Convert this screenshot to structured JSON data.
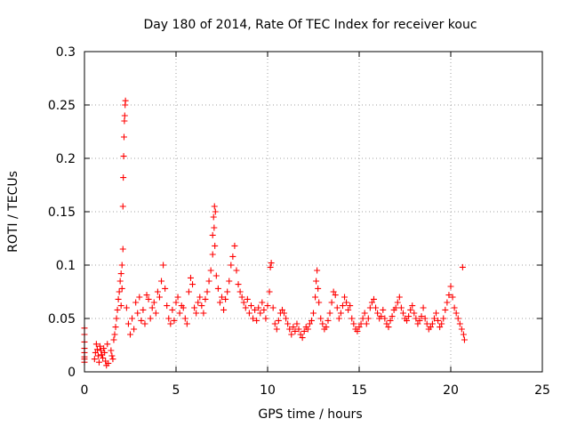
{
  "chart_data": {
    "type": "scatter",
    "title": "Day 180 of 2014, Rate Of TEC Index for receiver kouc",
    "xlabel": "GPS time / hours",
    "ylabel": "ROTI / TECUs",
    "xlim": [
      0,
      25
    ],
    "ylim": [
      0,
      0.3
    ],
    "x_ticks": [
      0,
      5,
      10,
      15,
      20,
      25
    ],
    "x_tick_labels": [
      "0",
      "5",
      "10",
      "15",
      "20",
      "25"
    ],
    "y_ticks": [
      0,
      0.05,
      0.1,
      0.15,
      0.2,
      0.25,
      0.3
    ],
    "y_tick_labels": [
      "0",
      "0.05",
      "0.1",
      "0.15",
      "0.2",
      "0.25",
      "0.3"
    ],
    "grid": true,
    "marker": "+",
    "series": [
      {
        "color": "#ff0000",
        "points": [
          [
            0.0,
            0.028
          ],
          [
            0.0,
            0.022
          ],
          [
            0.0,
            0.018
          ],
          [
            0.0,
            0.014
          ],
          [
            0.0,
            0.035
          ],
          [
            0.0,
            0.041
          ],
          [
            0.0,
            0.012
          ],
          [
            0.0,
            0.009
          ],
          [
            0.55,
            0.012
          ],
          [
            0.6,
            0.018
          ],
          [
            0.65,
            0.026
          ],
          [
            0.7,
            0.021
          ],
          [
            0.75,
            0.015
          ],
          [
            0.8,
            0.009
          ],
          [
            0.85,
            0.024
          ],
          [
            0.9,
            0.02
          ],
          [
            0.95,
            0.016
          ],
          [
            1.0,
            0.013
          ],
          [
            1.05,
            0.022
          ],
          [
            1.1,
            0.018
          ],
          [
            1.15,
            0.01
          ],
          [
            1.2,
            0.006
          ],
          [
            1.25,
            0.026
          ],
          [
            1.3,
            0.008
          ],
          [
            1.45,
            0.02
          ],
          [
            1.5,
            0.015
          ],
          [
            1.55,
            0.012
          ],
          [
            1.6,
            0.03
          ],
          [
            1.65,
            0.035
          ],
          [
            1.7,
            0.042
          ],
          [
            1.75,
            0.05
          ],
          [
            1.8,
            0.058
          ],
          [
            1.85,
            0.068
          ],
          [
            1.9,
            0.075
          ],
          [
            1.95,
            0.085
          ],
          [
            2.0,
            0.092
          ],
          [
            2.05,
            0.1
          ],
          [
            2.1,
            0.115
          ],
          [
            2.0,
            0.062
          ],
          [
            2.05,
            0.078
          ],
          [
            2.1,
            0.155
          ],
          [
            2.12,
            0.182
          ],
          [
            2.14,
            0.202
          ],
          [
            2.16,
            0.22
          ],
          [
            2.18,
            0.235
          ],
          [
            2.2,
            0.24
          ],
          [
            2.22,
            0.25
          ],
          [
            2.24,
            0.254
          ],
          [
            2.3,
            0.06
          ],
          [
            2.4,
            0.045
          ],
          [
            2.5,
            0.035
          ],
          [
            2.6,
            0.05
          ],
          [
            2.7,
            0.04
          ],
          [
            2.8,
            0.065
          ],
          [
            2.9,
            0.055
          ],
          [
            3.0,
            0.07
          ],
          [
            3.1,
            0.048
          ],
          [
            3.2,
            0.058
          ],
          [
            3.3,
            0.045
          ],
          [
            3.4,
            0.072
          ],
          [
            3.5,
            0.068
          ],
          [
            3.6,
            0.05
          ],
          [
            3.7,
            0.06
          ],
          [
            3.8,
            0.065
          ],
          [
            3.9,
            0.055
          ],
          [
            4.0,
            0.075
          ],
          [
            4.1,
            0.07
          ],
          [
            4.2,
            0.085
          ],
          [
            4.3,
            0.1
          ],
          [
            4.4,
            0.078
          ],
          [
            4.5,
            0.062
          ],
          [
            4.6,
            0.05
          ],
          [
            4.7,
            0.045
          ],
          [
            4.8,
            0.058
          ],
          [
            4.9,
            0.048
          ],
          [
            5.0,
            0.065
          ],
          [
            5.1,
            0.07
          ],
          [
            5.2,
            0.055
          ],
          [
            5.3,
            0.062
          ],
          [
            5.4,
            0.06
          ],
          [
            5.5,
            0.05
          ],
          [
            5.6,
            0.045
          ],
          [
            5.7,
            0.075
          ],
          [
            5.8,
            0.088
          ],
          [
            5.9,
            0.082
          ],
          [
            6.0,
            0.06
          ],
          [
            6.1,
            0.055
          ],
          [
            6.2,
            0.065
          ],
          [
            6.3,
            0.07
          ],
          [
            6.4,
            0.062
          ],
          [
            6.5,
            0.055
          ],
          [
            6.6,
            0.068
          ],
          [
            6.7,
            0.075
          ],
          [
            6.8,
            0.085
          ],
          [
            6.9,
            0.095
          ],
          [
            7.0,
            0.11
          ],
          [
            7.0,
            0.128
          ],
          [
            7.05,
            0.145
          ],
          [
            7.1,
            0.155
          ],
          [
            7.15,
            0.15
          ],
          [
            7.08,
            0.135
          ],
          [
            7.12,
            0.118
          ],
          [
            7.2,
            0.09
          ],
          [
            7.3,
            0.078
          ],
          [
            7.4,
            0.065
          ],
          [
            7.5,
            0.07
          ],
          [
            7.6,
            0.058
          ],
          [
            7.7,
            0.068
          ],
          [
            7.8,
            0.075
          ],
          [
            7.9,
            0.085
          ],
          [
            8.0,
            0.1
          ],
          [
            8.1,
            0.108
          ],
          [
            8.2,
            0.118
          ],
          [
            8.3,
            0.095
          ],
          [
            8.4,
            0.082
          ],
          [
            8.5,
            0.075
          ],
          [
            8.6,
            0.07
          ],
          [
            8.7,
            0.065
          ],
          [
            8.8,
            0.06
          ],
          [
            8.9,
            0.068
          ],
          [
            9.0,
            0.055
          ],
          [
            9.1,
            0.062
          ],
          [
            9.2,
            0.05
          ],
          [
            9.3,
            0.058
          ],
          [
            9.4,
            0.048
          ],
          [
            9.5,
            0.06
          ],
          [
            9.6,
            0.055
          ],
          [
            9.7,
            0.065
          ],
          [
            9.8,
            0.058
          ],
          [
            9.9,
            0.05
          ],
          [
            10.0,
            0.062
          ],
          [
            10.1,
            0.075
          ],
          [
            10.15,
            0.098
          ],
          [
            10.2,
            0.102
          ],
          [
            10.3,
            0.06
          ],
          [
            10.4,
            0.045
          ],
          [
            10.5,
            0.04
          ],
          [
            10.6,
            0.048
          ],
          [
            10.7,
            0.055
          ],
          [
            10.8,
            0.058
          ],
          [
            10.9,
            0.055
          ],
          [
            11.0,
            0.05
          ],
          [
            11.1,
            0.045
          ],
          [
            11.2,
            0.04
          ],
          [
            11.3,
            0.035
          ],
          [
            11.4,
            0.042
          ],
          [
            11.5,
            0.038
          ],
          [
            11.6,
            0.045
          ],
          [
            11.7,
            0.04
          ],
          [
            11.8,
            0.035
          ],
          [
            11.9,
            0.032
          ],
          [
            12.0,
            0.038
          ],
          [
            12.1,
            0.042
          ],
          [
            12.2,
            0.04
          ],
          [
            12.3,
            0.045
          ],
          [
            12.4,
            0.048
          ],
          [
            12.5,
            0.055
          ],
          [
            12.6,
            0.07
          ],
          [
            12.65,
            0.085
          ],
          [
            12.7,
            0.095
          ],
          [
            12.75,
            0.078
          ],
          [
            12.8,
            0.065
          ],
          [
            12.9,
            0.05
          ],
          [
            13.0,
            0.045
          ],
          [
            13.1,
            0.04
          ],
          [
            13.2,
            0.042
          ],
          [
            13.3,
            0.048
          ],
          [
            13.4,
            0.055
          ],
          [
            13.5,
            0.065
          ],
          [
            13.6,
            0.075
          ],
          [
            13.7,
            0.072
          ],
          [
            13.8,
            0.06
          ],
          [
            13.9,
            0.05
          ],
          [
            14.0,
            0.055
          ],
          [
            14.1,
            0.062
          ],
          [
            14.2,
            0.07
          ],
          [
            14.3,
            0.065
          ],
          [
            14.4,
            0.058
          ],
          [
            14.5,
            0.062
          ],
          [
            14.6,
            0.05
          ],
          [
            14.7,
            0.045
          ],
          [
            14.8,
            0.04
          ],
          [
            14.9,
            0.038
          ],
          [
            15.0,
            0.042
          ],
          [
            15.1,
            0.045
          ],
          [
            15.2,
            0.05
          ],
          [
            15.3,
            0.055
          ],
          [
            15.4,
            0.045
          ],
          [
            15.5,
            0.05
          ],
          [
            15.6,
            0.06
          ],
          [
            15.7,
            0.065
          ],
          [
            15.8,
            0.068
          ],
          [
            15.9,
            0.06
          ],
          [
            16.0,
            0.055
          ],
          [
            16.1,
            0.05
          ],
          [
            16.2,
            0.052
          ],
          [
            16.3,
            0.058
          ],
          [
            16.4,
            0.05
          ],
          [
            16.5,
            0.045
          ],
          [
            16.6,
            0.042
          ],
          [
            16.7,
            0.048
          ],
          [
            16.8,
            0.052
          ],
          [
            16.9,
            0.058
          ],
          [
            17.0,
            0.06
          ],
          [
            17.1,
            0.065
          ],
          [
            17.2,
            0.07
          ],
          [
            17.3,
            0.06
          ],
          [
            17.4,
            0.055
          ],
          [
            17.5,
            0.05
          ],
          [
            17.6,
            0.048
          ],
          [
            17.7,
            0.052
          ],
          [
            17.8,
            0.058
          ],
          [
            17.9,
            0.062
          ],
          [
            18.0,
            0.055
          ],
          [
            18.1,
            0.05
          ],
          [
            18.2,
            0.045
          ],
          [
            18.3,
            0.048
          ],
          [
            18.4,
            0.052
          ],
          [
            18.5,
            0.06
          ],
          [
            18.6,
            0.05
          ],
          [
            18.7,
            0.045
          ],
          [
            18.8,
            0.04
          ],
          [
            18.9,
            0.042
          ],
          [
            19.0,
            0.045
          ],
          [
            19.1,
            0.05
          ],
          [
            19.2,
            0.055
          ],
          [
            19.3,
            0.048
          ],
          [
            19.4,
            0.042
          ],
          [
            19.5,
            0.045
          ],
          [
            19.6,
            0.05
          ],
          [
            19.7,
            0.058
          ],
          [
            19.8,
            0.065
          ],
          [
            19.9,
            0.072
          ],
          [
            20.0,
            0.08
          ],
          [
            20.1,
            0.07
          ],
          [
            20.2,
            0.06
          ],
          [
            20.3,
            0.055
          ],
          [
            20.4,
            0.05
          ],
          [
            20.5,
            0.045
          ],
          [
            20.6,
            0.04
          ],
          [
            20.65,
            0.098
          ],
          [
            20.7,
            0.035
          ],
          [
            20.75,
            0.03
          ]
        ]
      }
    ]
  }
}
